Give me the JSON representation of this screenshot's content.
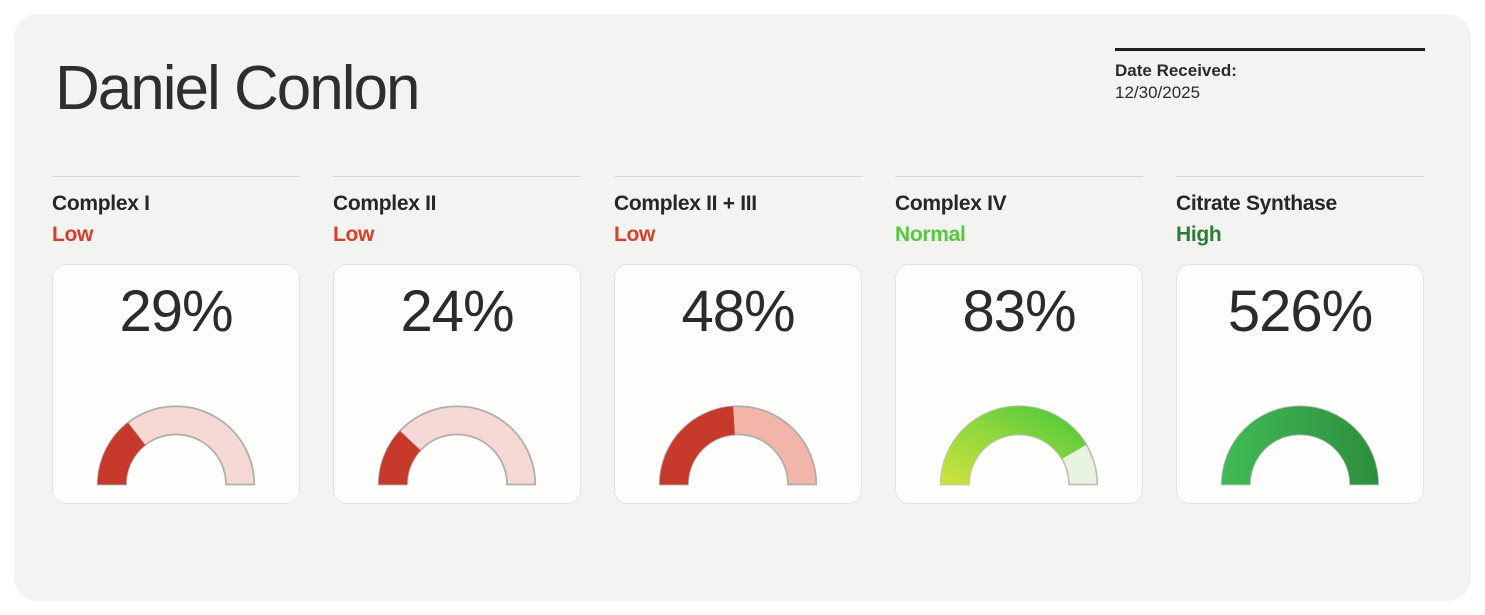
{
  "page": {
    "background": "#ffffff",
    "panel_background": "#f3f3f1"
  },
  "header": {
    "patient_name": "Daniel Conlon",
    "date_received_label": "Date Received:",
    "date_received_value": "12/30/2025"
  },
  "chart_data": {
    "type": "gauge",
    "title": "Daniel Conlon",
    "date_received": "12/30/2025",
    "gauge_axis_range": [
      0,
      100
    ],
    "gauge_shape": "semicircle",
    "gauges": [
      {
        "label": "Complex I",
        "status": "Low",
        "value": 29,
        "display_value": "29%",
        "status_color": "#d6402b",
        "track_color": "#f6d9d4",
        "outline_color": "#b1afac",
        "fill_gradient": [
          "#c6392b"
        ]
      },
      {
        "label": "Complex II",
        "status": "Low",
        "value": 24,
        "display_value": "24%",
        "status_color": "#d6402b",
        "track_color": "#f6d9d4",
        "outline_color": "#b1afac",
        "fill_gradient": [
          "#c6392b"
        ]
      },
      {
        "label": "Complex II + III",
        "status": "Low",
        "value": 48,
        "display_value": "48%",
        "status_color": "#d6402b",
        "track_color": "#f2b5aa",
        "outline_color": "#b1afac",
        "fill_gradient": [
          "#c6392b"
        ]
      },
      {
        "label": "Complex IV",
        "status": "Normal",
        "value": 83,
        "display_value": "83%",
        "status_color": "#56c83e",
        "track_color": "#e8f4e0",
        "outline_color": "#c3c1be",
        "fill_gradient": [
          "#cfe33b",
          "#8ed73e",
          "#44c538"
        ]
      },
      {
        "label": "Citrate Synthase",
        "status": "High",
        "value": 526,
        "display_value": "526%",
        "status_color": "#2a7d33",
        "track_color": "#e8f4e0",
        "outline_color": "#c3c1be",
        "fill_gradient": [
          "#41bb55",
          "#2d8e3e"
        ]
      }
    ]
  }
}
